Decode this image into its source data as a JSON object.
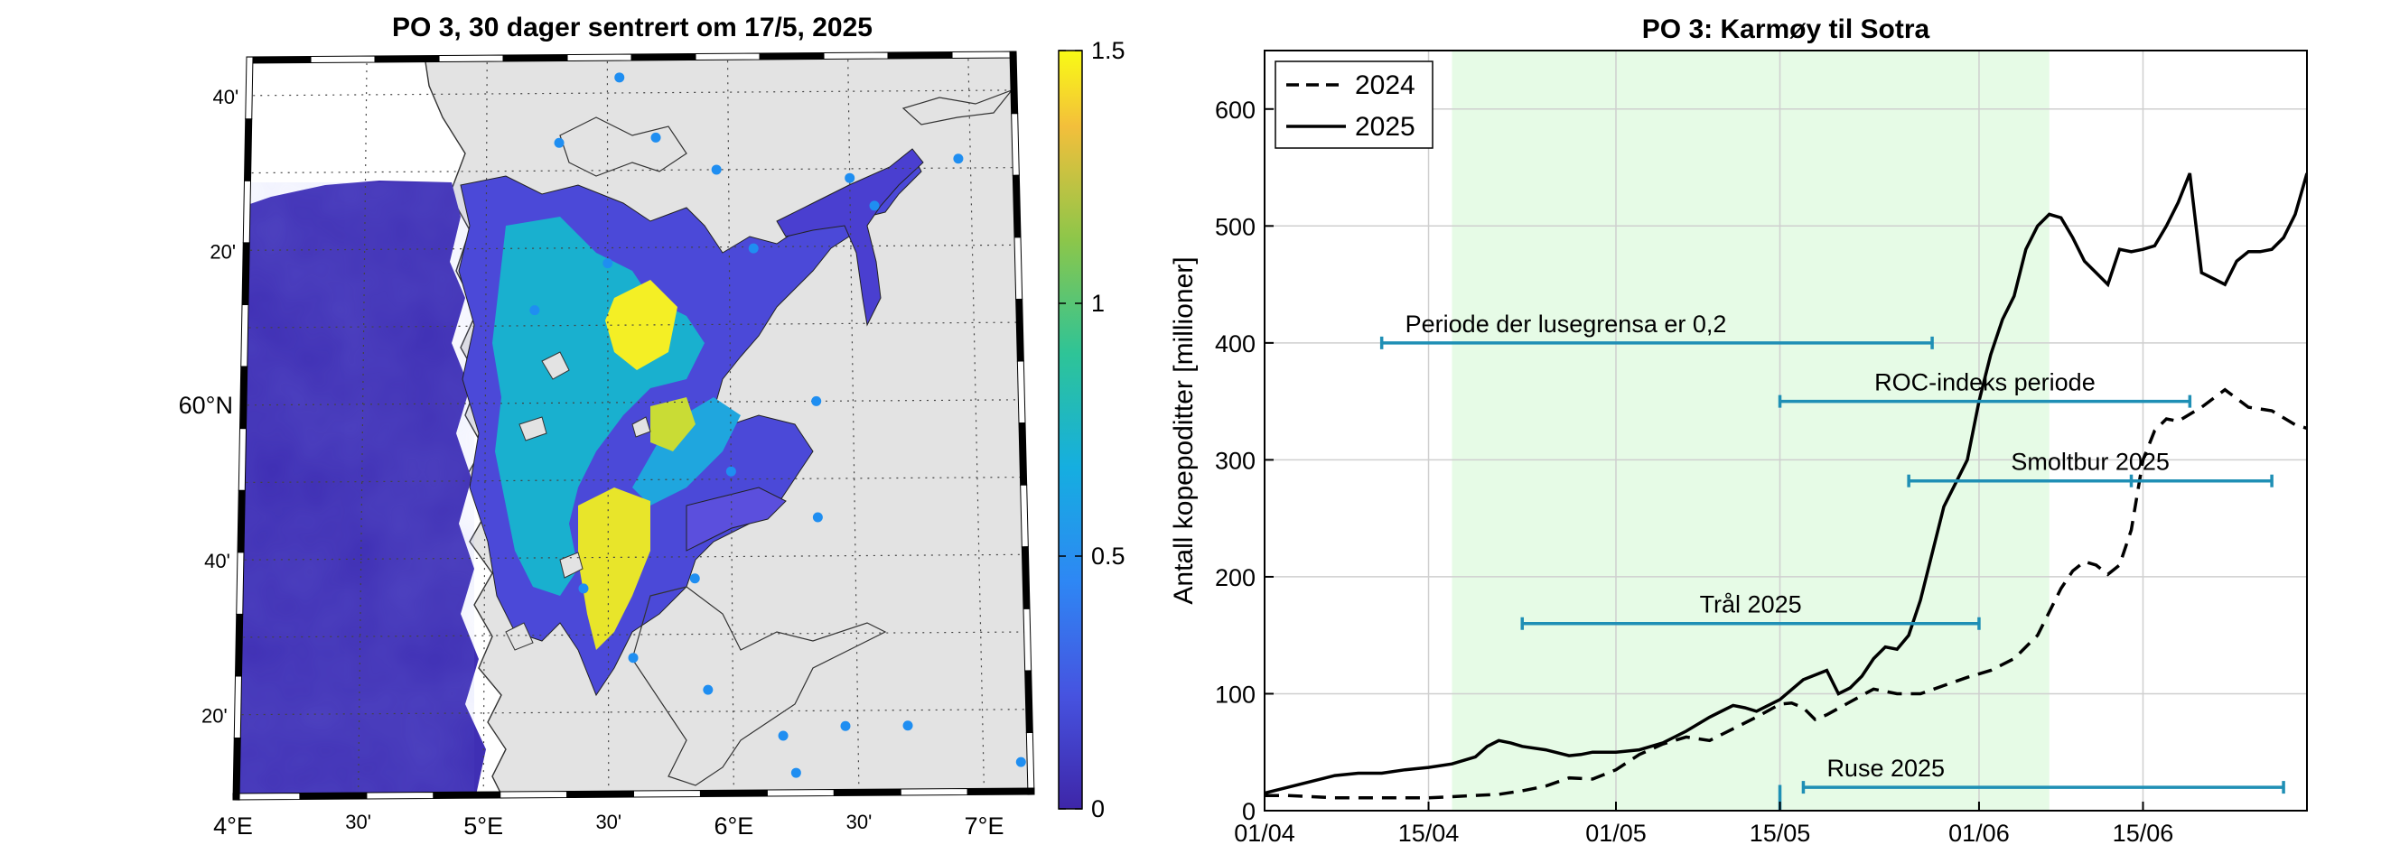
{
  "map_panel": {
    "title": "PO 3, 30 dager sentrert om 17/5, 2025",
    "lat_labels": [
      {
        "lat": 60.6667,
        "text": "40'",
        "major": false
      },
      {
        "lat": 60.3333,
        "text": "20'",
        "major": false
      },
      {
        "lat": 60.0,
        "text": "60°N",
        "major": true
      },
      {
        "lat": 59.6667,
        "text": "40'",
        "major": false
      },
      {
        "lat": 59.3333,
        "text": "20'",
        "major": false
      }
    ],
    "lon_labels": [
      {
        "lon": 4.0,
        "text": "4°E",
        "major": true
      },
      {
        "lon": 4.5,
        "text": "30'",
        "major": false
      },
      {
        "lon": 5.0,
        "text": "5°E",
        "major": true
      },
      {
        "lon": 5.5,
        "text": "30'",
        "major": false
      },
      {
        "lon": 6.0,
        "text": "6°E",
        "major": true
      },
      {
        "lon": 6.5,
        "text": "30'",
        "major": false
      },
      {
        "lon": 7.0,
        "text": "7°E",
        "major": true
      }
    ],
    "colorbar": {
      "min": 0,
      "max": 1.5,
      "ticks": [
        "0",
        "0.5",
        "1",
        "1.5"
      ],
      "tick_values": [
        0,
        0.5,
        1,
        1.5
      ]
    },
    "colors": {
      "land": "#e3e3e3",
      "sea_low": "#3e26a8",
      "sea_mid": "#19b2d3",
      "sea_high": "#f9fb15",
      "station": "#1f8ef1"
    }
  },
  "chart_data": {
    "type": "line",
    "title": "PO 3: Karmøy til Sotra",
    "ylabel": "Antall kopepoditter [millioner]",
    "xlabel": "",
    "x_ticks": [
      {
        "day": 0,
        "label": "01/04"
      },
      {
        "day": 14,
        "label": "15/04"
      },
      {
        "day": 30,
        "label": "01/05"
      },
      {
        "day": 44,
        "label": "15/05"
      },
      {
        "day": 61,
        "label": "01/06"
      },
      {
        "day": 75,
        "label": "15/06"
      }
    ],
    "xlim": [
      0,
      89
    ],
    "ylim": [
      0,
      650
    ],
    "y_ticks": [
      0,
      100,
      200,
      300,
      400,
      500,
      600
    ],
    "grid": true,
    "legend_position": "top-left",
    "shaded_region": {
      "start_day": 16,
      "end_day": 67,
      "color": "#e6fbe6"
    },
    "series": [
      {
        "name": "2024",
        "style": "dashed",
        "x": [
          0,
          2,
          4,
          6,
          8,
          10,
          12,
          14,
          16,
          18,
          20,
          22,
          24,
          26,
          28,
          30,
          32,
          34,
          36,
          38,
          40,
          42,
          44,
          45,
          46,
          47,
          48,
          50,
          52,
          54,
          56,
          58,
          60,
          62,
          64,
          66,
          68,
          69,
          70,
          71,
          72,
          73,
          74,
          75,
          76,
          77,
          78,
          80,
          82,
          84,
          86,
          88,
          89
        ],
        "y": [
          13,
          13,
          12,
          11,
          11,
          11,
          11,
          11,
          12,
          13,
          14,
          17,
          21,
          28,
          27,
          35,
          48,
          57,
          63,
          60,
          70,
          80,
          91,
          92,
          88,
          78,
          82,
          93,
          104,
          100,
          100,
          107,
          114,
          120,
          130,
          150,
          190,
          205,
          213,
          210,
          202,
          210,
          240,
          300,
          325,
          335,
          333,
          345,
          360,
          345,
          342,
          330,
          327
        ]
      },
      {
        "name": "2025",
        "style": "solid",
        "x": [
          0,
          2,
          4,
          6,
          8,
          10,
          12,
          14,
          16,
          18,
          19,
          20,
          21,
          22,
          24,
          26,
          27,
          28,
          30,
          32,
          34,
          36,
          38,
          40,
          41,
          42,
          44,
          46,
          48,
          49,
          50,
          51,
          52,
          53,
          54,
          55,
          56,
          58,
          59,
          60,
          61,
          62,
          63,
          64,
          65,
          66,
          67,
          68,
          69,
          70,
          71,
          72,
          73,
          74,
          75,
          76,
          77,
          78,
          79,
          80,
          81,
          82,
          83,
          84,
          85,
          86,
          87,
          88,
          89
        ],
        "y": [
          15,
          20,
          25,
          30,
          32,
          32,
          35,
          37,
          40,
          46,
          55,
          60,
          58,
          55,
          52,
          47,
          48,
          50,
          50,
          52,
          58,
          68,
          80,
          90,
          88,
          85,
          95,
          112,
          120,
          100,
          105,
          115,
          130,
          140,
          138,
          150,
          180,
          260,
          280,
          300,
          350,
          390,
          420,
          440,
          480,
          500,
          510,
          507,
          490,
          470,
          460,
          450,
          480,
          478,
          480,
          483,
          500,
          520,
          545,
          460,
          455,
          450,
          470,
          478,
          478,
          480,
          490,
          510,
          545
        ]
      }
    ],
    "annotations": [
      {
        "label": "Periode der lusegrensa er 0,2",
        "start_day": 10,
        "end_day": 57,
        "y": 400,
        "label_pos": "above-left",
        "mid_ticks": []
      },
      {
        "label": "ROC-indeks periode",
        "start_day": 44,
        "end_day": 79,
        "y": 350,
        "label_pos": "above-center",
        "mid_ticks": []
      },
      {
        "label": "Smoltbur 2025",
        "start_day": 55,
        "end_day": 86,
        "y": 282,
        "label_pos": "above-center",
        "mid_ticks": [
          74
        ]
      },
      {
        "label": "Trål 2025",
        "start_day": 22,
        "end_day": 61,
        "y": 160,
        "label_pos": "above-center",
        "mid_ticks": []
      },
      {
        "label": "Ruse 2025",
        "start_day": 46,
        "end_day": 87,
        "y": 20,
        "label_pos": "above-left",
        "mid_ticks": []
      }
    ],
    "extra_marks": [
      {
        "day": 44,
        "y_min": 0,
        "y_max": 22
      }
    ],
    "annotation_color": "#1f8fb5"
  }
}
